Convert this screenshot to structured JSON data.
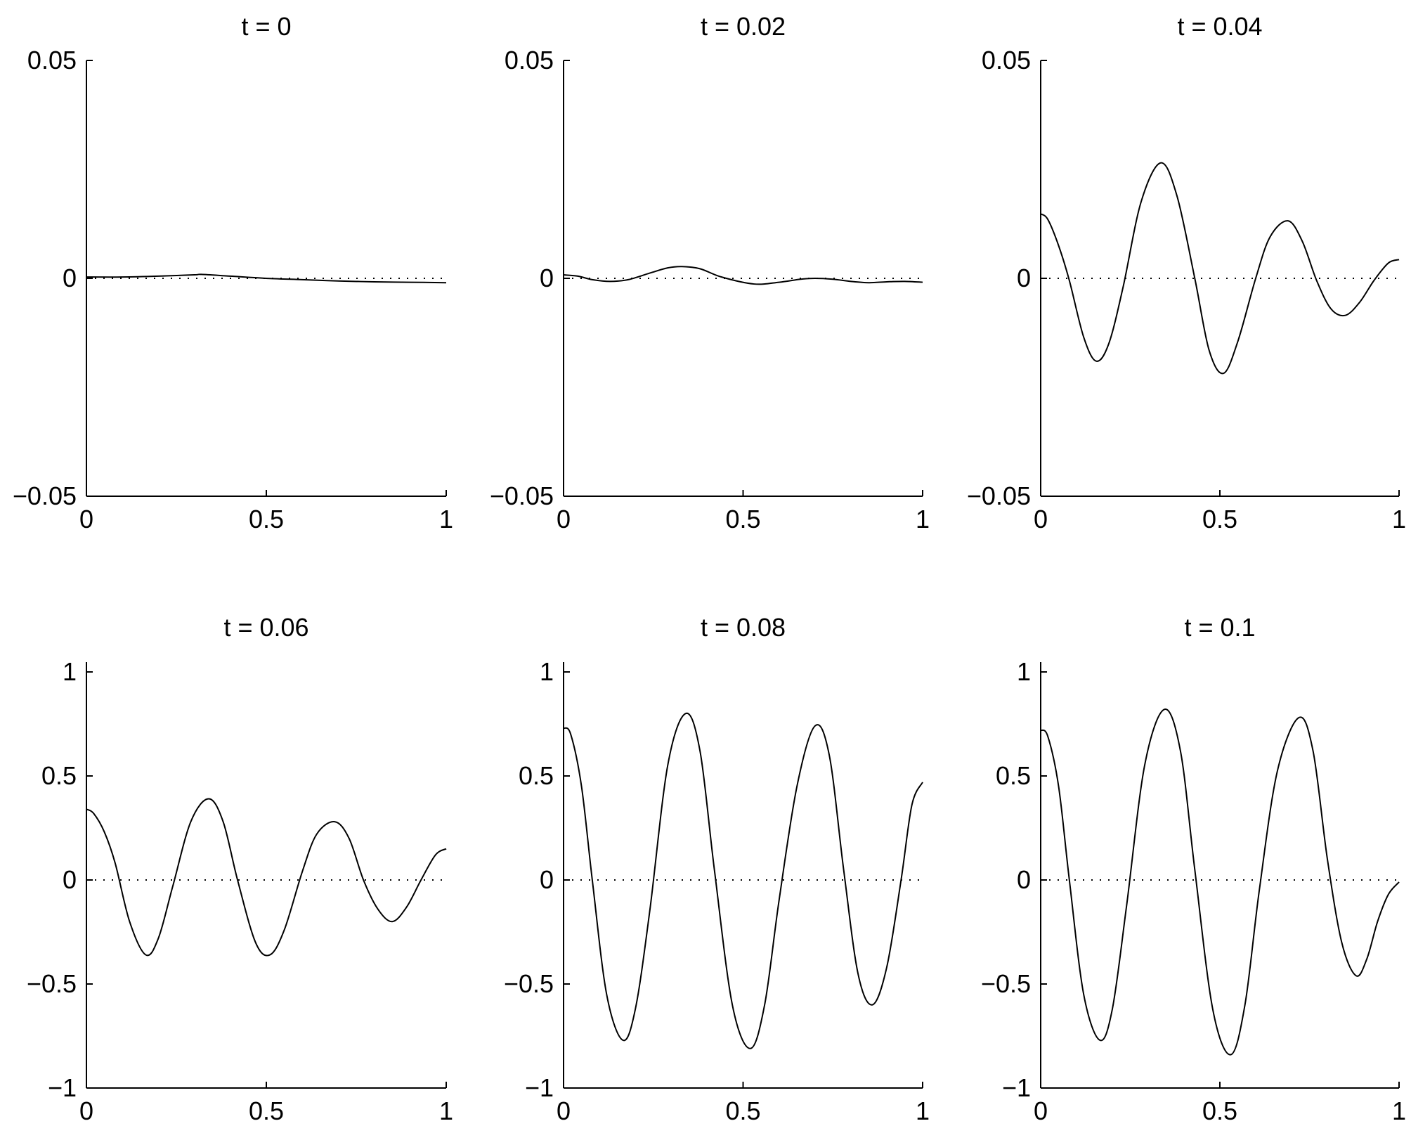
{
  "chart_data": [
    {
      "type": "line",
      "title": "t = 0",
      "xlim": [
        0,
        1
      ],
      "ylim": [
        -0.05,
        0.05
      ],
      "xticks": [
        {
          "v": 0,
          "label": "0"
        },
        {
          "v": 0.5,
          "label": "0.5"
        },
        {
          "v": 1,
          "label": "1"
        }
      ],
      "yticks": [
        {
          "v": -0.05,
          "label": "−0.05"
        },
        {
          "v": 0,
          "label": "0"
        },
        {
          "v": 0.05,
          "label": "0.05"
        }
      ],
      "zero_line": "dotted",
      "x": [
        0,
        0.1,
        0.2,
        0.3,
        0.32,
        0.4,
        0.5,
        0.6,
        0.7,
        0.8,
        0.9,
        1.0
      ],
      "y": [
        0.0003,
        0.0003,
        0.0005,
        0.0008,
        0.0009,
        0.0005,
        0.0,
        -0.0003,
        -0.0006,
        -0.0008,
        -0.0009,
        -0.001
      ]
    },
    {
      "type": "line",
      "title": "t = 0.02",
      "xlim": [
        0,
        1
      ],
      "ylim": [
        -0.05,
        0.05
      ],
      "xticks": [
        {
          "v": 0,
          "label": "0"
        },
        {
          "v": 0.5,
          "label": "0.5"
        },
        {
          "v": 1,
          "label": "1"
        }
      ],
      "yticks": [
        {
          "v": -0.05,
          "label": "−0.05"
        },
        {
          "v": 0,
          "label": "0"
        },
        {
          "v": 0.05,
          "label": "0.05"
        }
      ],
      "zero_line": "dotted",
      "x": [
        0,
        0.04,
        0.08,
        0.13,
        0.18,
        0.24,
        0.29,
        0.33,
        0.38,
        0.44,
        0.53,
        0.6,
        0.66,
        0.7,
        0.75,
        0.8,
        0.85,
        0.9,
        0.95,
        1.0
      ],
      "y": [
        0.0008,
        0.0005,
        -0.0003,
        -0.0007,
        -0.0003,
        0.0012,
        0.0024,
        0.0027,
        0.0022,
        0.0003,
        -0.0013,
        -0.0009,
        -0.0002,
        0.0,
        -0.0002,
        -0.0007,
        -0.001,
        -0.0008,
        -0.0007,
        -0.0009
      ]
    },
    {
      "type": "line",
      "title": "t = 0.04",
      "xlim": [
        0,
        1
      ],
      "ylim": [
        -0.05,
        0.05
      ],
      "xticks": [
        {
          "v": 0,
          "label": "0"
        },
        {
          "v": 0.5,
          "label": "0.5"
        },
        {
          "v": 1,
          "label": "1"
        }
      ],
      "yticks": [
        {
          "v": -0.05,
          "label": "−0.05"
        },
        {
          "v": 0,
          "label": "0"
        },
        {
          "v": 0.05,
          "label": "0.05"
        }
      ],
      "zero_line": "dotted",
      "x": [
        0,
        0.02,
        0.05,
        0.08,
        0.12,
        0.155,
        0.19,
        0.23,
        0.28,
        0.335,
        0.38,
        0.43,
        0.47,
        0.51,
        0.55,
        0.6,
        0.64,
        0.69,
        0.73,
        0.77,
        0.81,
        0.85,
        0.89,
        0.93,
        0.97,
        1.0
      ],
      "y": [
        0.0148,
        0.0135,
        0.0075,
        -0.0005,
        -0.0135,
        -0.019,
        -0.015,
        -0.002,
        0.0175,
        0.0265,
        0.019,
        0.0,
        -0.0165,
        -0.0218,
        -0.0145,
        0.0,
        0.0095,
        0.0132,
        0.0085,
        -0.0005,
        -0.007,
        -0.0085,
        -0.0055,
        -0.0005,
        0.0035,
        0.0043
      ]
    },
    {
      "type": "line",
      "title": "t = 0.06",
      "xlim": [
        0,
        1
      ],
      "ylim": [
        -1.05,
        1.05
      ],
      "xticks": [
        {
          "v": 0,
          "label": "0"
        },
        {
          "v": 0.5,
          "label": "0.5"
        },
        {
          "v": 1,
          "label": "1"
        }
      ],
      "yticks": [
        {
          "v": -1,
          "label": "−1"
        },
        {
          "v": -0.5,
          "label": "−0.5"
        },
        {
          "v": 0,
          "label": "0"
        },
        {
          "v": 0.5,
          "label": "0.5"
        },
        {
          "v": 1,
          "label": "1"
        }
      ],
      "zero_line": "dotted",
      "x": [
        0,
        0.02,
        0.05,
        0.08,
        0.12,
        0.165,
        0.2,
        0.24,
        0.29,
        0.34,
        0.38,
        0.42,
        0.47,
        0.51,
        0.55,
        0.6,
        0.64,
        0.69,
        0.73,
        0.77,
        0.81,
        0.85,
        0.89,
        0.93,
        0.97,
        1.0
      ],
      "y": [
        0.34,
        0.32,
        0.23,
        0.08,
        -0.2,
        -0.36,
        -0.28,
        -0.03,
        0.28,
        0.39,
        0.28,
        0.0,
        -0.3,
        -0.36,
        -0.24,
        0.04,
        0.22,
        0.28,
        0.2,
        0.0,
        -0.14,
        -0.2,
        -0.13,
        0.0,
        0.12,
        0.15
      ]
    },
    {
      "type": "line",
      "title": "t = 0.08",
      "xlim": [
        0,
        1
      ],
      "ylim": [
        -1.05,
        1.05
      ],
      "xticks": [
        {
          "v": 0,
          "label": "0"
        },
        {
          "v": 0.5,
          "label": "0.5"
        },
        {
          "v": 1,
          "label": "1"
        }
      ],
      "yticks": [
        {
          "v": -1,
          "label": "−1"
        },
        {
          "v": -0.5,
          "label": "−0.5"
        },
        {
          "v": 0,
          "label": "0"
        },
        {
          "v": 0.5,
          "label": "0.5"
        },
        {
          "v": 1,
          "label": "1"
        }
      ],
      "zero_line": "dotted",
      "x": [
        0,
        0.02,
        0.05,
        0.08,
        0.12,
        0.165,
        0.2,
        0.24,
        0.29,
        0.34,
        0.38,
        0.42,
        0.47,
        0.52,
        0.56,
        0.6,
        0.65,
        0.7,
        0.74,
        0.78,
        0.82,
        0.86,
        0.9,
        0.94,
        0.97,
        1.0
      ],
      "y": [
        0.73,
        0.7,
        0.45,
        0.0,
        -0.55,
        -0.77,
        -0.62,
        -0.15,
        0.55,
        0.8,
        0.62,
        0.05,
        -0.6,
        -0.81,
        -0.6,
        -0.1,
        0.45,
        0.74,
        0.6,
        0.05,
        -0.45,
        -0.6,
        -0.42,
        0.0,
        0.36,
        0.47
      ]
    },
    {
      "type": "line",
      "title": "t = 0.1",
      "xlim": [
        0,
        1
      ],
      "ylim": [
        -1.05,
        1.05
      ],
      "xticks": [
        {
          "v": 0,
          "label": "0"
        },
        {
          "v": 0.5,
          "label": "0.5"
        },
        {
          "v": 1,
          "label": "1"
        }
      ],
      "yticks": [
        {
          "v": -1,
          "label": "−1"
        },
        {
          "v": -0.5,
          "label": "−0.5"
        },
        {
          "v": 0,
          "label": "0"
        },
        {
          "v": 0.5,
          "label": "0.5"
        },
        {
          "v": 1,
          "label": "1"
        }
      ],
      "zero_line": "dotted",
      "x": [
        0,
        0.02,
        0.05,
        0.08,
        0.12,
        0.165,
        0.2,
        0.24,
        0.29,
        0.345,
        0.39,
        0.43,
        0.48,
        0.53,
        0.57,
        0.61,
        0.66,
        0.72,
        0.76,
        0.8,
        0.84,
        0.88,
        0.91,
        0.94,
        0.97,
        1.0
      ],
      "y": [
        0.72,
        0.69,
        0.45,
        0.0,
        -0.55,
        -0.77,
        -0.62,
        -0.12,
        0.55,
        0.82,
        0.62,
        0.05,
        -0.62,
        -0.84,
        -0.6,
        -0.05,
        0.52,
        0.78,
        0.62,
        0.1,
        -0.3,
        -0.46,
        -0.38,
        -0.2,
        -0.07,
        -0.01
      ]
    }
  ]
}
